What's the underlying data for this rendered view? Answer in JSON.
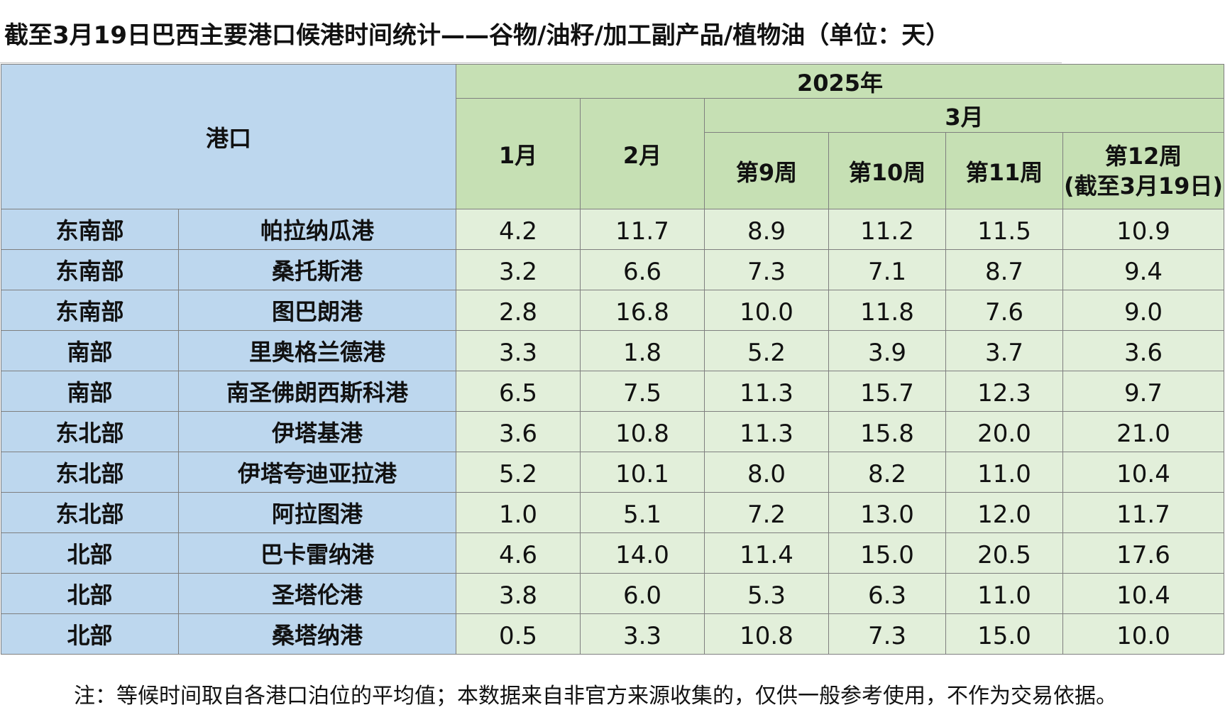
{
  "title": "截至3月19日巴西主要港口候港时间统计——谷物/油籽/加工副产品/植物油（单位：天）",
  "header": {
    "port": "港口",
    "year": "2025年",
    "jan": "1月",
    "feb": "2月",
    "mar": "3月",
    "weeks": [
      "第9周",
      "第10周",
      "第11周"
    ],
    "week12_line1": "第12周",
    "week12_line2": "(截至3月19日)"
  },
  "rows": [
    {
      "region": "东南部",
      "port": "帕拉纳瓜港",
      "values": [
        "4.2",
        "11.7",
        "8.9",
        "11.2",
        "11.5",
        "10.9"
      ]
    },
    {
      "region": "东南部",
      "port": "桑托斯港",
      "values": [
        "3.2",
        "6.6",
        "7.3",
        "7.1",
        "8.7",
        "9.4"
      ]
    },
    {
      "region": "东南部",
      "port": "图巴朗港",
      "values": [
        "2.8",
        "16.8",
        "10.0",
        "11.8",
        "7.6",
        "9.0"
      ]
    },
    {
      "region": "南部",
      "port": "里奥格兰德港",
      "values": [
        "3.3",
        "1.8",
        "5.2",
        "3.9",
        "3.7",
        "3.6"
      ]
    },
    {
      "region": "南部",
      "port": "南圣佛朗西斯科港",
      "values": [
        "6.5",
        "7.5",
        "11.3",
        "15.7",
        "12.3",
        "9.7"
      ]
    },
    {
      "region": "东北部",
      "port": "伊塔基港",
      "values": [
        "3.6",
        "10.8",
        "11.3",
        "15.8",
        "20.0",
        "21.0"
      ]
    },
    {
      "region": "东北部",
      "port": "伊塔夸迪亚拉港",
      "values": [
        "5.2",
        "10.1",
        "8.0",
        "8.2",
        "11.0",
        "10.4"
      ]
    },
    {
      "region": "东北部",
      "port": "阿拉图港",
      "values": [
        "1.0",
        "5.1",
        "7.2",
        "13.0",
        "12.0",
        "11.7"
      ]
    },
    {
      "region": "北部",
      "port": "巴卡雷纳港",
      "values": [
        "4.6",
        "14.0",
        "11.4",
        "15.0",
        "20.5",
        "17.6"
      ]
    },
    {
      "region": "北部",
      "port": "圣塔伦港",
      "values": [
        "3.8",
        "6.0",
        "5.3",
        "6.3",
        "11.0",
        "10.4"
      ]
    },
    {
      "region": "北部",
      "port": "桑塔纳港",
      "values": [
        "0.5",
        "3.3",
        "10.8",
        "7.3",
        "15.0",
        "10.0"
      ]
    }
  ],
  "note": "注：等候时间取自各港口泊位的平均值；本数据来自非官方来源收集的，仅供一般参考使用，不作为交易依据。",
  "colors": {
    "header_blue": "#bdd7ee",
    "header_green": "#c6e0b4",
    "value_green": "#e2efda"
  }
}
